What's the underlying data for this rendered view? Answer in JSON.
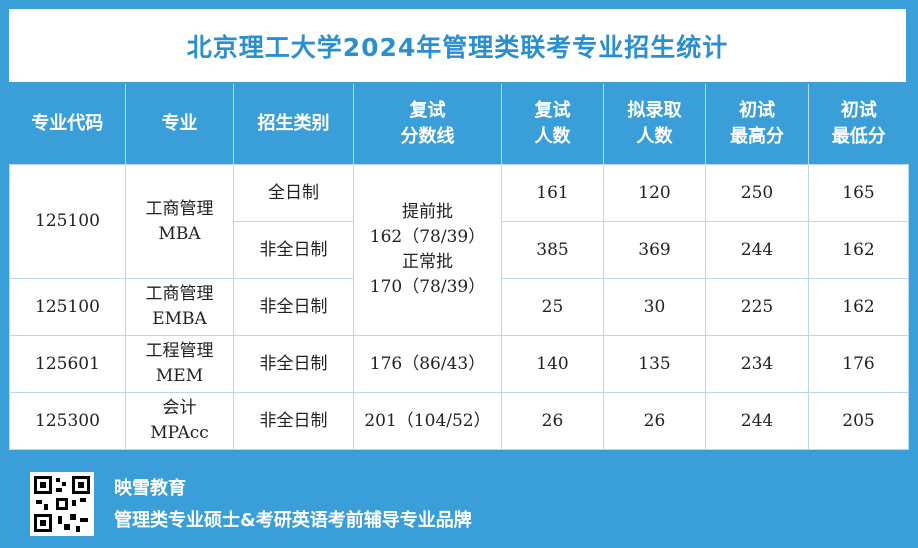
{
  "title": "北京理工大学2024年管理类联考专业招生统计",
  "headers": {
    "code": "专业代码",
    "major": "专业",
    "type": "招生类别",
    "line_1": "复试",
    "line_2": "分数线",
    "retest_1": "复试",
    "retest_2": "人数",
    "admit_1": "拟录取",
    "admit_2": "人数",
    "max_1": "初试",
    "max_2": "最高分",
    "min_1": "初试",
    "min_2": "最低分"
  },
  "rows": [
    {
      "code": "125100",
      "major_cn": "工商管理",
      "major_en": "MBA",
      "sub": [
        {
          "type": "全日制",
          "retest": "161",
          "admit": "120",
          "max": "250",
          "min": "165"
        },
        {
          "type": "非全日制",
          "retest": "385",
          "admit": "369",
          "max": "244",
          "min": "162"
        }
      ]
    },
    {
      "code": "125100",
      "major_cn": "工商管理",
      "major_en": "EMBA",
      "type": "非全日制",
      "retest": "25",
      "admit": "30",
      "max": "225",
      "min": "162"
    },
    {
      "code": "125601",
      "major_cn": "工程管理",
      "major_en": "MEM",
      "type": "非全日制",
      "line": "176（86/43）",
      "retest": "140",
      "admit": "135",
      "max": "234",
      "min": "176"
    },
    {
      "code": "125300",
      "major_cn": "会计",
      "major_en": "MPAcc",
      "type": "非全日制",
      "line": "201（104/52）",
      "retest": "26",
      "admit": "26",
      "max": "244",
      "min": "205"
    }
  ],
  "shared_line": {
    "label_1": "提前批",
    "value_1": "162（78/39）",
    "label_2": "正常批",
    "value_2": "170（78/39）"
  },
  "footer": {
    "brand": "映雪教育",
    "slogan": "管理类专业硕士&考研英语考前辅导专业品牌"
  },
  "colors": {
    "accent": "#3a9fd8",
    "title_text": "#2a8fd0"
  }
}
